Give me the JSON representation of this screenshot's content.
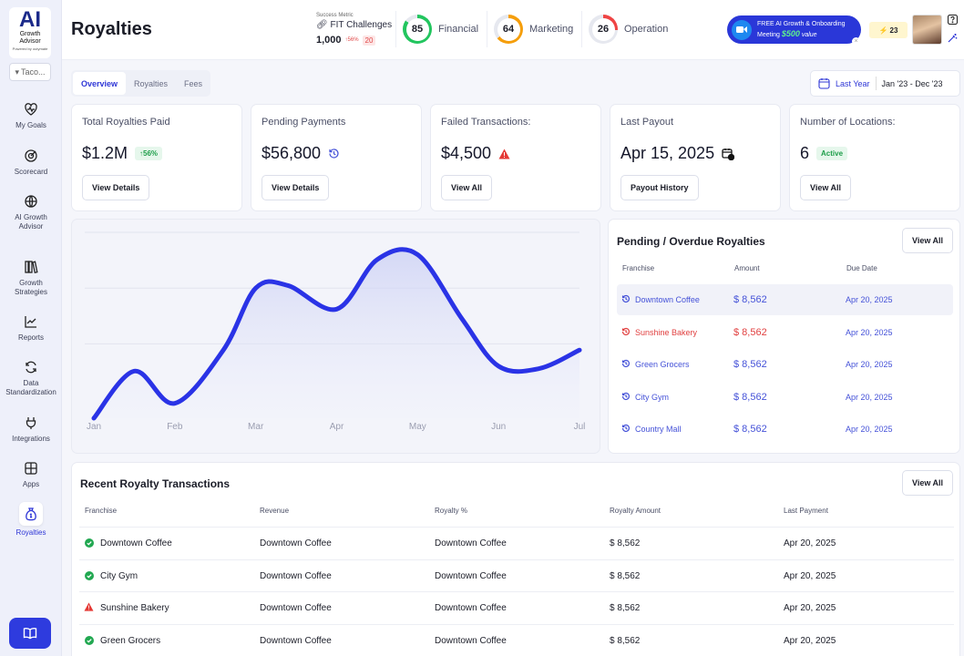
{
  "app": {
    "title": "Royalties",
    "logo_main": "AI",
    "logo_sub": "Growth Advisor",
    "logo_powered": "Powered by outymate",
    "org": "Taco..."
  },
  "sidebar": {
    "items": [
      {
        "label": "My Goals",
        "icon": "heart-pulse-icon"
      },
      {
        "label": "Scorecard",
        "icon": "target-icon"
      },
      {
        "label": "AI Growth Advisor",
        "icon": "globe-icon"
      },
      {
        "label": "Growth Strategies",
        "icon": "books-icon"
      },
      {
        "label": "Reports",
        "icon": "line-chart-icon"
      },
      {
        "label": "Data Standardization",
        "icon": "refresh-icon"
      },
      {
        "label": "Integrations",
        "icon": "plug-icon"
      },
      {
        "label": "Apps",
        "icon": "grid-icon"
      },
      {
        "label": "Royalties",
        "icon": "money-bag-icon"
      }
    ],
    "active": "Royalties"
  },
  "header": {
    "success_metric_label": "Success Metric",
    "fit_label": "FIT Challenges",
    "fit_value": "1,000",
    "fit_change": "↑56%",
    "fit_badge": "20",
    "scores": [
      {
        "value": "85",
        "label": "Financial",
        "color": "#22c55e",
        "pct": 85
      },
      {
        "value": "64",
        "label": "Marketing",
        "color": "#f59e0b",
        "pct": 64
      },
      {
        "value": "26",
        "label": "Operation",
        "color": "#ef4444",
        "pct": 26
      }
    ],
    "promo_line1": "FREE AI Growth & Onboarding",
    "promo_line2": "Meeting",
    "promo_amount": "$500",
    "promo_suffix": "value",
    "energy": "23"
  },
  "tabs": [
    "Overview",
    "Royalties",
    "Fees"
  ],
  "date": {
    "label": "Last Year",
    "range": "Jan '23 - Dec '23"
  },
  "kpis": [
    {
      "title": "Total Royalties Paid",
      "value": "$1.2M",
      "badge": "↑56%",
      "button": "View Details"
    },
    {
      "title": "Pending Payments",
      "value": "$56,800",
      "button": "View Details"
    },
    {
      "title": "Failed Transactions:",
      "value": "$4,500",
      "button": "View All"
    },
    {
      "title": "Last Payout",
      "value": "Apr 15, 2025",
      "button": "Payout History"
    },
    {
      "title": "Number of Locations:",
      "value": "6",
      "badge": "Active",
      "button": "View All"
    }
  ],
  "chart_data": {
    "type": "area",
    "categories": [
      "Jan",
      "Feb",
      "Mar",
      "Apr",
      "May",
      "Jun",
      "Jul"
    ],
    "x": [
      0,
      0.5,
      1,
      1.6,
      2,
      2.4,
      3,
      3.5,
      4,
      4.55,
      5,
      5.5,
      6
    ],
    "values": [
      0,
      38,
      12,
      55,
      105,
      107,
      88,
      128,
      132,
      80,
      42,
      40,
      55
    ],
    "ylim": [
      0,
      150
    ],
    "grid": true,
    "color": "#2a33e6"
  },
  "pending": {
    "title": "Pending / Overdue Royalties",
    "button": "View All",
    "columns": [
      "Franchise",
      "Amount",
      "Due Date"
    ],
    "rows": [
      {
        "franchise": "Downtown Coffee",
        "amount": "$ 8,562",
        "due": "Apr 20, 2025",
        "status": "pending"
      },
      {
        "franchise": "Sunshine Bakery",
        "amount": "$ 8,562",
        "due": "Apr 20, 2025",
        "status": "overdue"
      },
      {
        "franchise": "Green Grocers",
        "amount": "$ 8,562",
        "due": "Apr 20, 2025",
        "status": "pending"
      },
      {
        "franchise": "City Gym",
        "amount": "$ 8,562",
        "due": "Apr 20, 2025",
        "status": "pending"
      },
      {
        "franchise": "Country Mall",
        "amount": "$ 8,562",
        "due": "Apr 20, 2025",
        "status": "pending"
      }
    ]
  },
  "recent": {
    "title": "Recent Royalty Transactions",
    "button": "View All",
    "columns": [
      "Franchise",
      "Revenue",
      "Royalty %",
      "Royalty Amount",
      "Last Payment"
    ],
    "rows": [
      {
        "status": "success",
        "franchise": "Downtown Coffee",
        "revenue": "Downtown Coffee",
        "pct": "Downtown Coffee",
        "amount": "$ 8,562",
        "last": "Apr 20, 2025"
      },
      {
        "status": "success",
        "franchise": "City Gym",
        "revenue": "Downtown Coffee",
        "pct": "Downtown Coffee",
        "amount": "$ 8,562",
        "last": "Apr 20, 2025"
      },
      {
        "status": "warning",
        "franchise": "Sunshine Bakery",
        "revenue": "Downtown Coffee",
        "pct": "Downtown Coffee",
        "amount": "$ 8,562",
        "last": "Apr 20, 2025"
      },
      {
        "status": "success",
        "franchise": "Green Grocers",
        "revenue": "Downtown Coffee",
        "pct": "Downtown Coffee",
        "amount": "$ 8,562",
        "last": "Apr 20, 2025"
      }
    ]
  }
}
